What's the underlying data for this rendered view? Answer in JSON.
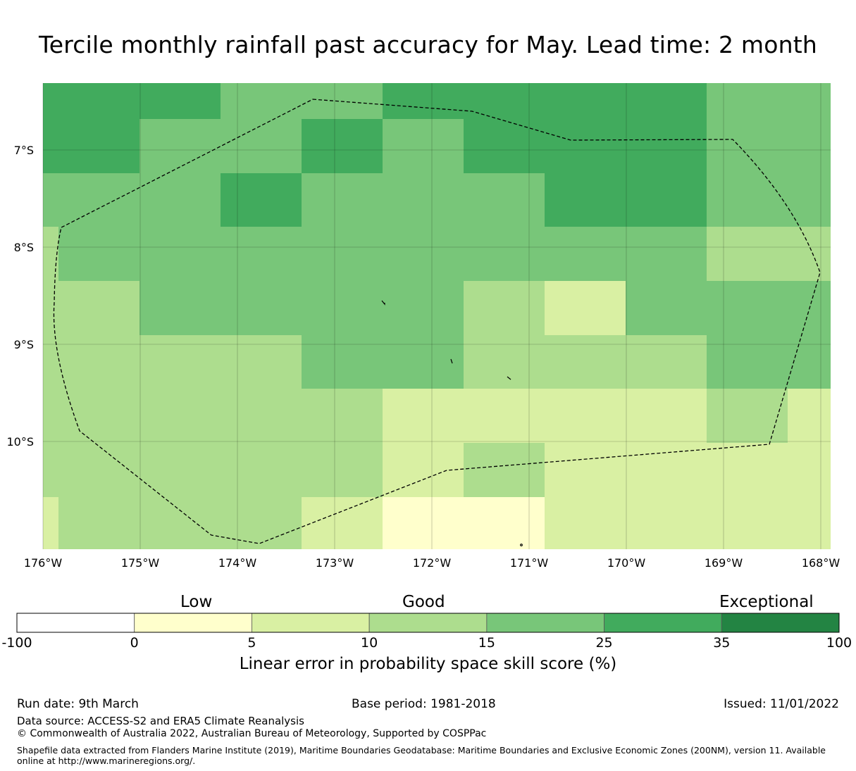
{
  "title": "Tercile monthly rainfall past accuracy for May. Lead time: 2 month",
  "map": {
    "lon_ticks": [
      "176°W",
      "175°W",
      "174°W",
      "173°W",
      "172°W",
      "171°W",
      "170°W",
      "169°W",
      "168°W"
    ],
    "lat_ticks": [
      "7°S",
      "8°S",
      "9°S",
      "10°S"
    ],
    "boundary_style": "dashed",
    "grid_lines": true
  },
  "legend": {
    "categories": [
      {
        "label": "Low"
      },
      {
        "label": "Good"
      },
      {
        "label": "Exceptional"
      }
    ],
    "bins": [
      {
        "from": -100,
        "to": 0,
        "color": "#ffffff"
      },
      {
        "from": 0,
        "to": 5,
        "color": "#ffffcc"
      },
      {
        "from": 5,
        "to": 10,
        "color": "#d9f0a3"
      },
      {
        "from": 10,
        "to": 15,
        "color": "#addd8e"
      },
      {
        "from": 15,
        "to": 25,
        "color": "#78c679"
      },
      {
        "from": 25,
        "to": 35,
        "color": "#41ab5d"
      },
      {
        "from": 35,
        "to": 100,
        "color": "#238443"
      }
    ],
    "tick_labels": [
      "-100",
      "0",
      "5",
      "10",
      "15",
      "25",
      "35",
      "100"
    ],
    "axis_label": "Linear error in probability space skill score (%)"
  },
  "footer": {
    "run_date": "Run date: 9th March",
    "base_period": "Base period: 1981-2018",
    "issued": "Issued: 11/01/2022",
    "data_source": "Data source: ACCESS-S2 and ERA5 Climate Reanalysis",
    "copyright": "© Commonwealth of Australia 2022, Australian Bureau of Meteorology, Supported by COSPPac",
    "shapefile_note": "Shapefile data extracted from Flanders Marine Institute (2019), Maritime Boundaries Geodatabase: Maritime Boundaries and Exclusive Economic Zones (200NM), version 11. Available online at http://www.marineregions.org/."
  }
}
